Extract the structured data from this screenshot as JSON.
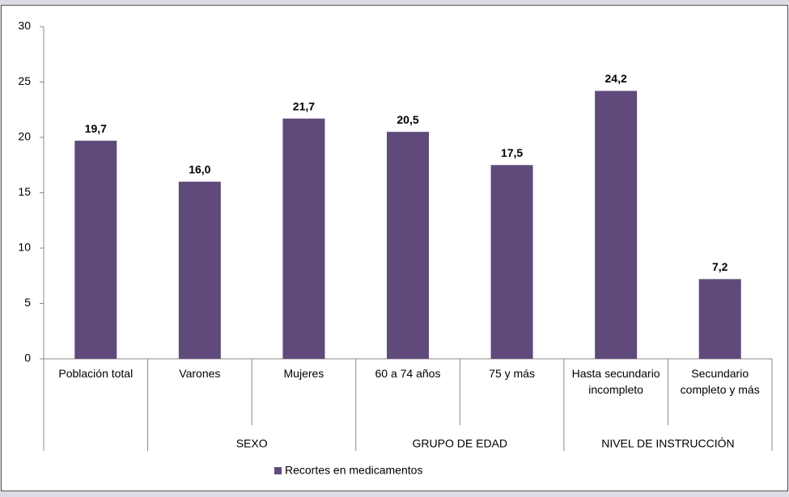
{
  "chart_data": {
    "type": "bar",
    "categories": [
      "Población total",
      "Varones",
      "Mujeres",
      "60 a 74 años",
      "75 y más",
      "Hasta secundario incompleto",
      "Secundario completo y más"
    ],
    "groups": [
      {
        "name": null,
        "size": 1
      },
      {
        "name": "SEXO",
        "size": 2
      },
      {
        "name": "GRUPO DE EDAD",
        "size": 2
      },
      {
        "name": "NIVEL DE INSTRUCCIÓN",
        "size": 2
      }
    ],
    "series": [
      {
        "name": "Recortes en medicamentos",
        "color": "#604a7b",
        "values": [
          19.7,
          16.0,
          21.7,
          20.5,
          17.5,
          24.2,
          7.2
        ],
        "value_labels": [
          "19,7",
          "16,0",
          "21,7",
          "20,5",
          "17,5",
          "24,2",
          "7,2"
        ]
      }
    ],
    "ylim": [
      0,
      30
    ],
    "yticks": [
      0,
      5,
      10,
      15,
      20,
      25,
      30
    ]
  }
}
